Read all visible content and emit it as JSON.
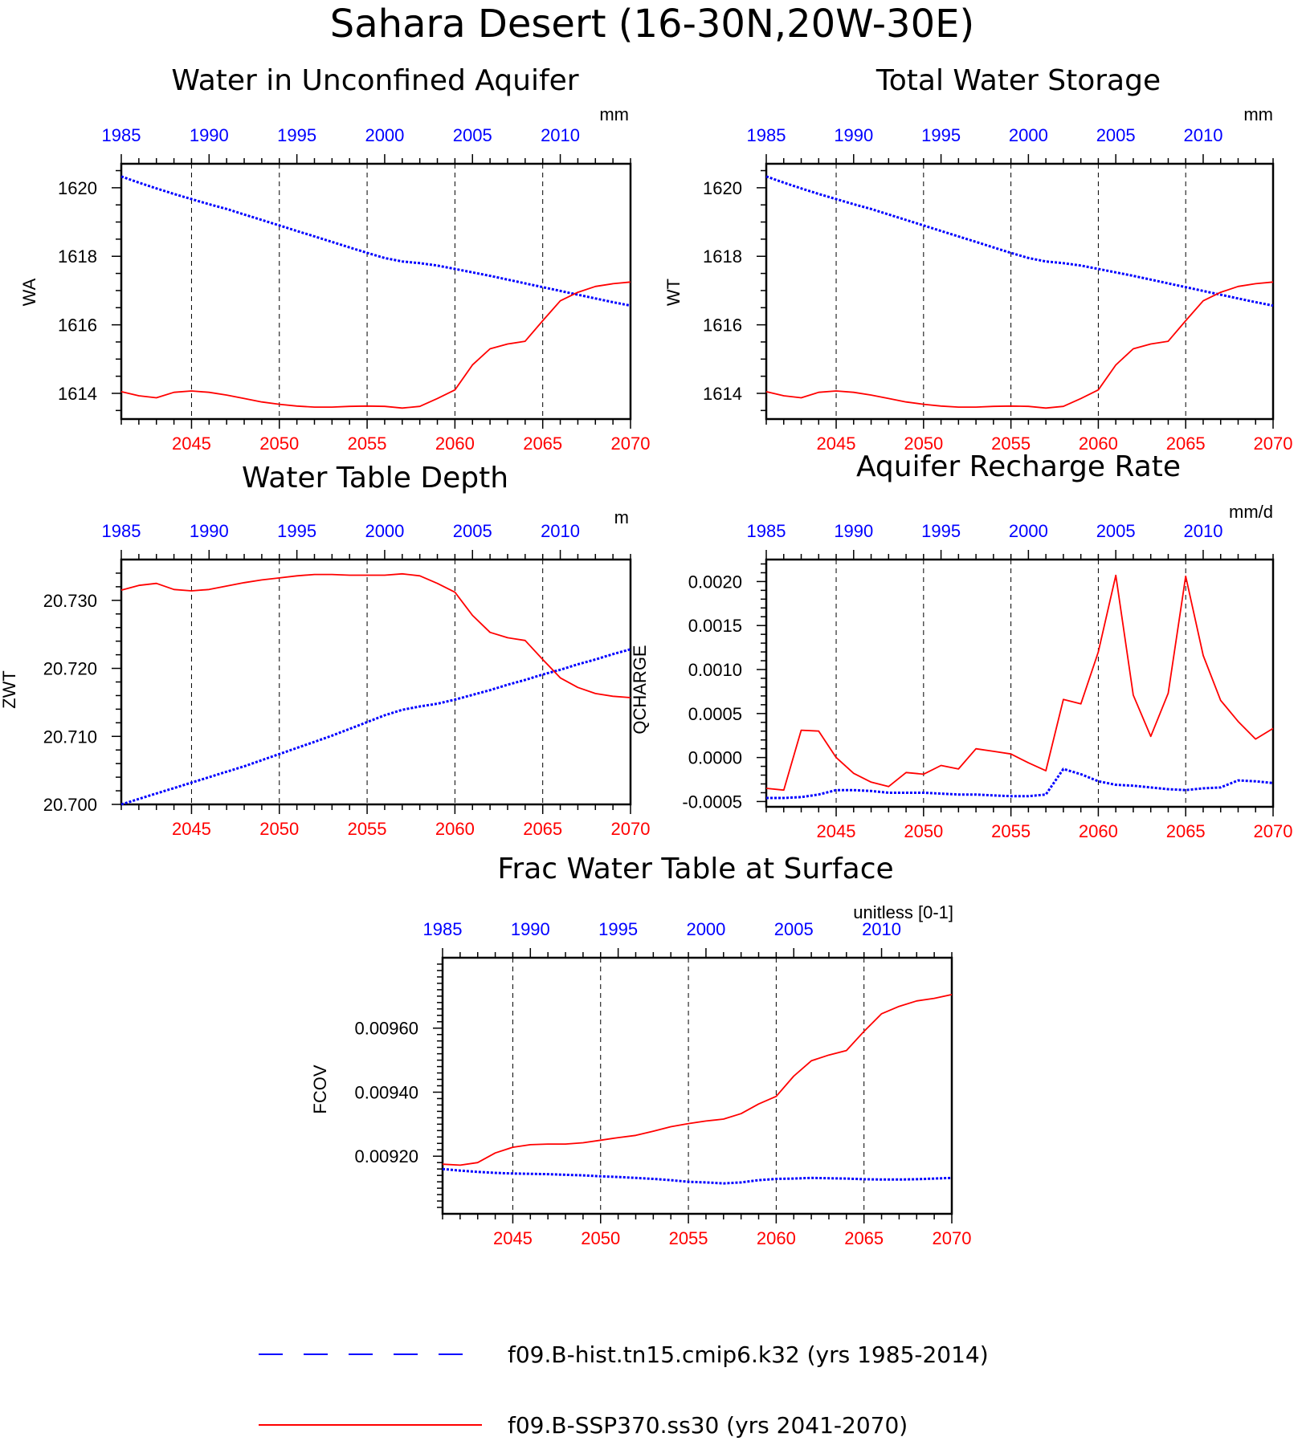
{
  "figure_title": "Sahara Desert (16-30N,20W-30E)",
  "colors": {
    "hist": "#0000ff",
    "ssp": "#ff0000",
    "axis": "#000000"
  },
  "legend": [
    {
      "label": "f09.B-hist.tn15.cmip6.k32 (yrs 1985-2014)",
      "color": "#0000ff",
      "style": "dashed"
    },
    {
      "label": "f09.B-SSP370.ss30 (yrs 2041-2070)",
      "color": "#ff0000",
      "style": "solid"
    }
  ],
  "chart_data": [
    {
      "type": "line",
      "title": "Water in Unconfined Aquifer",
      "ylabel": "WA",
      "units": "mm",
      "xlim_top": [
        1985,
        2014
      ],
      "xlim_bottom": [
        2041,
        2070
      ],
      "top_ticks": [
        1985,
        1990,
        1995,
        2000,
        2005,
        2010
      ],
      "bottom_ticks": [
        2045,
        2050,
        2055,
        2060,
        2065,
        2070
      ],
      "ylim": [
        1613.25,
        1620.7
      ],
      "yticks": [
        1614,
        1616,
        1618,
        1620
      ],
      "ytick_labels": [
        "1614",
        "1616",
        "1618",
        "1620"
      ],
      "yminor": [
        1613.5,
        1614.5,
        1615,
        1615.5,
        1616.5,
        1617,
        1617.5,
        1618.5,
        1619,
        1619.5,
        1620.5
      ],
      "grid_x": "dashed at bottom-axis major ticks",
      "series": [
        {
          "label": "f09.B-hist.tn15.cmip6.k32 (yrs 1985-2014)",
          "axis": "top",
          "style": "dashed",
          "x": [
            1985,
            1986,
            1987,
            1988,
            1989,
            1990,
            1991,
            1992,
            1993,
            1994,
            1995,
            1996,
            1997,
            1998,
            1999,
            2000,
            2001,
            2002,
            2003,
            2004,
            2005,
            2006,
            2007,
            2008,
            2009,
            2010,
            2011,
            2012,
            2013,
            2014
          ],
          "y": [
            1620.33,
            1620.15,
            1619.98,
            1619.82,
            1619.67,
            1619.52,
            1619.38,
            1619.22,
            1619.06,
            1618.9,
            1618.74,
            1618.58,
            1618.42,
            1618.26,
            1618.1,
            1617.95,
            1617.85,
            1617.8,
            1617.73,
            1617.63,
            1617.53,
            1617.43,
            1617.32,
            1617.21,
            1617.1,
            1616.99,
            1616.88,
            1616.77,
            1616.66,
            1616.56
          ]
        },
        {
          "label": "f09.B-SSP370.ss30 (yrs 2041-2070)",
          "axis": "bottom",
          "style": "solid",
          "x": [
            2041,
            2042,
            2043,
            2044,
            2045,
            2046,
            2047,
            2048,
            2049,
            2050,
            2051,
            2052,
            2053,
            2054,
            2055,
            2056,
            2057,
            2058,
            2059,
            2060,
            2061,
            2062,
            2063,
            2064,
            2065,
            2066,
            2067,
            2068,
            2069,
            2070
          ],
          "y": [
            1614.05,
            1613.93,
            1613.87,
            1614.03,
            1614.07,
            1614.03,
            1613.95,
            1613.85,
            1613.75,
            1613.68,
            1613.63,
            1613.6,
            1613.6,
            1613.62,
            1613.63,
            1613.62,
            1613.57,
            1613.62,
            1613.85,
            1614.1,
            1614.83,
            1615.3,
            1615.44,
            1615.52,
            1616.12,
            1616.7,
            1616.95,
            1617.12,
            1617.2,
            1617.25
          ]
        }
      ]
    },
    {
      "type": "line",
      "title": "Total Water Storage",
      "ylabel": "WT",
      "units": "mm",
      "xlim_top": [
        1985,
        2014
      ],
      "xlim_bottom": [
        2041,
        2070
      ],
      "top_ticks": [
        1985,
        1990,
        1995,
        2000,
        2005,
        2010
      ],
      "bottom_ticks": [
        2045,
        2050,
        2055,
        2060,
        2065,
        2070
      ],
      "ylim": [
        1613.25,
        1620.7
      ],
      "yticks": [
        1614,
        1616,
        1618,
        1620
      ],
      "ytick_labels": [
        "1614",
        "1616",
        "1618",
        "1620"
      ],
      "yminor": [
        1613.5,
        1614.5,
        1615,
        1615.5,
        1616.5,
        1617,
        1617.5,
        1618.5,
        1619,
        1619.5,
        1620.5
      ],
      "grid_x": "dashed at bottom-axis major ticks",
      "series": [
        {
          "label": "f09.B-hist.tn15.cmip6.k32 (yrs 1985-2014)",
          "axis": "top",
          "style": "dashed",
          "x": [
            1985,
            1986,
            1987,
            1988,
            1989,
            1990,
            1991,
            1992,
            1993,
            1994,
            1995,
            1996,
            1997,
            1998,
            1999,
            2000,
            2001,
            2002,
            2003,
            2004,
            2005,
            2006,
            2007,
            2008,
            2009,
            2010,
            2011,
            2012,
            2013,
            2014
          ],
          "y": [
            1620.33,
            1620.15,
            1619.98,
            1619.82,
            1619.67,
            1619.52,
            1619.38,
            1619.22,
            1619.06,
            1618.9,
            1618.74,
            1618.58,
            1618.42,
            1618.26,
            1618.1,
            1617.95,
            1617.85,
            1617.8,
            1617.73,
            1617.63,
            1617.53,
            1617.43,
            1617.32,
            1617.21,
            1617.1,
            1616.99,
            1616.88,
            1616.77,
            1616.66,
            1616.56
          ]
        },
        {
          "label": "f09.B-SSP370.ss30 (yrs 2041-2070)",
          "axis": "bottom",
          "style": "solid",
          "x": [
            2041,
            2042,
            2043,
            2044,
            2045,
            2046,
            2047,
            2048,
            2049,
            2050,
            2051,
            2052,
            2053,
            2054,
            2055,
            2056,
            2057,
            2058,
            2059,
            2060,
            2061,
            2062,
            2063,
            2064,
            2065,
            2066,
            2067,
            2068,
            2069,
            2070
          ],
          "y": [
            1614.05,
            1613.93,
            1613.87,
            1614.03,
            1614.07,
            1614.03,
            1613.95,
            1613.85,
            1613.75,
            1613.68,
            1613.63,
            1613.6,
            1613.6,
            1613.62,
            1613.63,
            1613.62,
            1613.57,
            1613.62,
            1613.85,
            1614.1,
            1614.83,
            1615.3,
            1615.44,
            1615.52,
            1616.12,
            1616.7,
            1616.95,
            1617.12,
            1617.2,
            1617.25
          ]
        }
      ]
    },
    {
      "type": "line",
      "title": "Water Table Depth",
      "ylabel": "ZWT",
      "units": "m",
      "xlim_top": [
        1985,
        2014
      ],
      "xlim_bottom": [
        2041,
        2070
      ],
      "top_ticks": [
        1985,
        1990,
        1995,
        2000,
        2005,
        2010
      ],
      "bottom_ticks": [
        2045,
        2050,
        2055,
        2060,
        2065,
        2070
      ],
      "ylim": [
        20.7,
        20.736
      ],
      "yticks": [
        20.7,
        20.71,
        20.72,
        20.73
      ],
      "ytick_labels": [
        "20.700",
        "20.710",
        "20.720",
        "20.730"
      ],
      "yminor": [
        20.702,
        20.704,
        20.706,
        20.708,
        20.712,
        20.714,
        20.716,
        20.718,
        20.722,
        20.724,
        20.726,
        20.728,
        20.732,
        20.734
      ],
      "grid_x": "dashed at bottom-axis major ticks",
      "series": [
        {
          "label": "f09.B-hist.tn15.cmip6.k32 (yrs 1985-2014)",
          "axis": "top",
          "style": "dashed",
          "x": [
            1985,
            1986,
            1987,
            1988,
            1989,
            1990,
            1991,
            1992,
            1993,
            1994,
            1995,
            1996,
            1997,
            1998,
            1999,
            2000,
            2001,
            2002,
            2003,
            2004,
            2005,
            2006,
            2007,
            2008,
            2009,
            2010,
            2011,
            2012,
            2013,
            2014
          ],
          "y": [
            20.7,
            20.7008,
            20.7016,
            20.7024,
            20.7032,
            20.704,
            20.7048,
            20.7056,
            20.7065,
            20.7074,
            20.7083,
            20.7092,
            20.7101,
            20.7111,
            20.7121,
            20.7131,
            20.7139,
            20.7144,
            20.7148,
            20.7154,
            20.7161,
            20.7168,
            20.7176,
            20.7183,
            20.7191,
            20.7198,
            20.7206,
            20.7213,
            20.7221,
            20.7228
          ]
        },
        {
          "label": "f09.B-SSP370.ss30 (yrs 2041-2070)",
          "axis": "bottom",
          "style": "solid",
          "x": [
            2041,
            2042,
            2043,
            2044,
            2045,
            2046,
            2047,
            2048,
            2049,
            2050,
            2051,
            2052,
            2053,
            2054,
            2055,
            2056,
            2057,
            2058,
            2059,
            2060,
            2061,
            2062,
            2063,
            2064,
            2065,
            2066,
            2067,
            2068,
            2069,
            2070
          ],
          "y": [
            20.7315,
            20.7322,
            20.7325,
            20.7316,
            20.7314,
            20.7316,
            20.7321,
            20.7326,
            20.733,
            20.7333,
            20.7336,
            20.7338,
            20.7338,
            20.7337,
            20.7337,
            20.7337,
            20.7339,
            20.7336,
            20.7325,
            20.7312,
            20.7278,
            20.7253,
            20.7245,
            20.7241,
            20.7213,
            20.7186,
            20.7172,
            20.7163,
            20.7159,
            20.7157
          ]
        }
      ]
    },
    {
      "type": "line",
      "title": "Aquifer Recharge Rate",
      "ylabel": "QCHARGE",
      "units": "mm/d",
      "xlim_top": [
        1985,
        2014
      ],
      "xlim_bottom": [
        2041,
        2070
      ],
      "top_ticks": [
        1985,
        1990,
        1995,
        2000,
        2005,
        2010
      ],
      "bottom_ticks": [
        2045,
        2050,
        2055,
        2060,
        2065,
        2070
      ],
      "ylim": [
        -0.00056,
        0.00225
      ],
      "yticks": [
        -0.0005,
        0.0,
        0.0005,
        0.001,
        0.0015,
        0.002
      ],
      "ytick_labels": [
        "-0.0005",
        "0.0000",
        "0.0005",
        "0.0010",
        "0.0015",
        "0.0020"
      ],
      "yminor": [
        -0.0004,
        -0.0003,
        -0.0002,
        -0.0001,
        0.0001,
        0.0002,
        0.0003,
        0.0004,
        0.0006,
        0.0007,
        0.0008,
        0.0009,
        0.0011,
        0.0012,
        0.0013,
        0.0014,
        0.0016,
        0.0017,
        0.0018,
        0.0019,
        0.0021,
        0.0022
      ],
      "grid_x": "dashed at bottom-axis major ticks",
      "series": [
        {
          "label": "f09.B-hist.tn15.cmip6.k32 (yrs 1985-2014)",
          "axis": "top",
          "style": "dashed",
          "x": [
            1985,
            1986,
            1987,
            1988,
            1989,
            1990,
            1991,
            1992,
            1993,
            1994,
            1995,
            1996,
            1997,
            1998,
            1999,
            2000,
            2001,
            2002,
            2003,
            2004,
            2005,
            2006,
            2007,
            2008,
            2009,
            2010,
            2011,
            2012,
            2013,
            2014
          ],
          "y": [
            -0.00046,
            -0.00046,
            -0.00045,
            -0.00042,
            -0.00037,
            -0.00037,
            -0.00038,
            -0.0004,
            -0.0004,
            -0.0004,
            -0.00041,
            -0.00042,
            -0.00042,
            -0.00043,
            -0.00044,
            -0.00044,
            -0.00042,
            -0.00013,
            -0.00019,
            -0.00027,
            -0.00031,
            -0.00032,
            -0.00034,
            -0.00036,
            -0.00037,
            -0.00035,
            -0.00034,
            -0.00026,
            -0.00027,
            -0.00029
          ]
        },
        {
          "label": "f09.B-SSP370.ss30 (yrs 2041-2070)",
          "axis": "bottom",
          "style": "solid",
          "x": [
            2041,
            2042,
            2043,
            2044,
            2045,
            2046,
            2047,
            2048,
            2049,
            2050,
            2051,
            2052,
            2053,
            2054,
            2055,
            2056,
            2057,
            2058,
            2059,
            2060,
            2061,
            2062,
            2063,
            2064,
            2065,
            2066,
            2067,
            2068,
            2069,
            2070
          ],
          "y": [
            -0.00035,
            -0.00037,
            0.00031,
            0.0003,
            0.0,
            -0.00018,
            -0.00028,
            -0.00033,
            -0.00017,
            -0.00019,
            -9e-05,
            -0.00013,
            0.0001,
            7e-05,
            4e-05,
            -6e-05,
            -0.00015,
            0.00066,
            0.00061,
            0.0012,
            0.00207,
            0.00071,
            0.00024,
            0.00073,
            0.00206,
            0.00116,
            0.00065,
            0.00041,
            0.00021,
            0.00033
          ]
        }
      ]
    },
    {
      "type": "line",
      "title": "Frac Water Table at Surface",
      "ylabel": "FCOV",
      "units": "unitless [0-1]",
      "xlim_top": [
        1985,
        2014
      ],
      "xlim_bottom": [
        2041,
        2070
      ],
      "top_ticks": [
        1985,
        1990,
        1995,
        2000,
        2005,
        2010
      ],
      "bottom_ticks": [
        2045,
        2050,
        2055,
        2060,
        2065,
        2070
      ],
      "ylim": [
        0.00902,
        0.00982
      ],
      "yticks": [
        0.0092,
        0.0094,
        0.0096
      ],
      "ytick_labels": [
        "0.00920",
        "0.00940",
        "0.00960"
      ],
      "yminor": [
        0.00904,
        0.00906,
        0.00908,
        0.0091,
        0.00912,
        0.00914,
        0.00916,
        0.00918,
        0.00922,
        0.00924,
        0.00926,
        0.00928,
        0.0093,
        0.00932,
        0.00934,
        0.00936,
        0.00938,
        0.00942,
        0.00944,
        0.00946,
        0.00948,
        0.0095,
        0.00952,
        0.00954,
        0.00956,
        0.00958,
        0.00962,
        0.00964,
        0.00966,
        0.00968,
        0.0097,
        0.00972,
        0.00974,
        0.00976,
        0.00978,
        0.0098
      ],
      "grid_x": "dashed at bottom-axis major ticks",
      "series": [
        {
          "label": "f09.B-hist.tn15.cmip6.k32 (yrs 1985-2014)",
          "axis": "top",
          "style": "dashed",
          "x": [
            1985,
            1986,
            1987,
            1988,
            1989,
            1990,
            1991,
            1992,
            1993,
            1994,
            1995,
            1996,
            1997,
            1998,
            1999,
            2000,
            2001,
            2002,
            2003,
            2004,
            2005,
            2006,
            2007,
            2008,
            2009,
            2010,
            2011,
            2012,
            2013,
            2014
          ],
          "y": [
            0.00916,
            0.009155,
            0.009151,
            0.009148,
            0.009146,
            0.009145,
            0.009144,
            0.009142,
            0.00914,
            0.009137,
            0.009135,
            0.009132,
            0.009129,
            0.009125,
            0.00912,
            0.009118,
            0.009115,
            0.009118,
            0.009125,
            0.009129,
            0.00913,
            0.009132,
            0.009131,
            0.00913,
            0.009128,
            0.009127,
            0.009127,
            0.009128,
            0.00913,
            0.009132
          ]
        },
        {
          "label": "f09.B-SSP370.ss30 (yrs 2041-2070)",
          "axis": "bottom",
          "style": "solid",
          "x": [
            2041,
            2042,
            2043,
            2044,
            2045,
            2046,
            2047,
            2048,
            2049,
            2050,
            2051,
            2052,
            2053,
            2054,
            2055,
            2056,
            2057,
            2058,
            2059,
            2060,
            2061,
            2062,
            2063,
            2064,
            2065,
            2066,
            2067,
            2068,
            2069,
            2070
          ],
          "y": [
            0.009175,
            0.009172,
            0.00918,
            0.00921,
            0.009228,
            0.009236,
            0.009238,
            0.009238,
            0.009242,
            0.00925,
            0.009258,
            0.009265,
            0.009278,
            0.009292,
            0.009302,
            0.00931,
            0.009316,
            0.009333,
            0.009363,
            0.009387,
            0.00945,
            0.009498,
            0.009516,
            0.00953,
            0.00959,
            0.009645,
            0.009668,
            0.009685,
            0.009693,
            0.009705
          ]
        }
      ]
    }
  ]
}
